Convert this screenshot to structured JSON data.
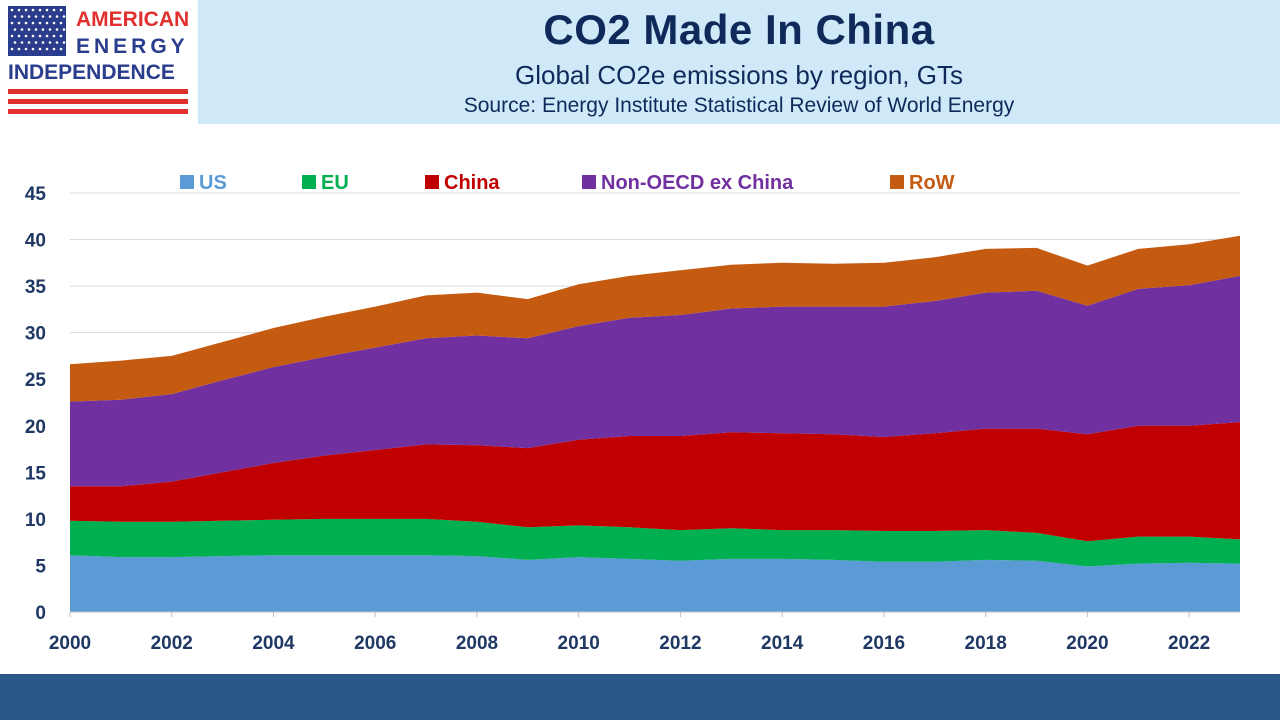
{
  "logo": {
    "line1": "AMERICAN",
    "line2": "ENERGY",
    "line3": "INDEPENDENCE"
  },
  "header": {
    "title": "CO2 Made In China",
    "subtitle": "Global CO2e emissions by region, GTs",
    "source": "Source: Energy Institute Statistical Review of World Energy"
  },
  "chart_data": {
    "type": "area",
    "stacked": true,
    "grid": true,
    "legend_position": "top",
    "ylim": [
      0,
      45
    ],
    "yticks": [
      0,
      5,
      10,
      15,
      20,
      25,
      30,
      35,
      40,
      45
    ],
    "xticks": [
      2000,
      2002,
      2004,
      2006,
      2008,
      2010,
      2012,
      2014,
      2016,
      2018,
      2020,
      2022
    ],
    "x": [
      2000,
      2001,
      2002,
      2003,
      2004,
      2005,
      2006,
      2007,
      2008,
      2009,
      2010,
      2011,
      2012,
      2013,
      2014,
      2015,
      2016,
      2017,
      2018,
      2019,
      2020,
      2021,
      2022,
      2023
    ],
    "series": [
      {
        "name": "US",
        "color": "#5b9bd5",
        "values": [
          6.1,
          5.9,
          5.9,
          6.0,
          6.1,
          6.1,
          6.1,
          6.1,
          6.0,
          5.6,
          5.9,
          5.7,
          5.5,
          5.7,
          5.7,
          5.6,
          5.4,
          5.4,
          5.6,
          5.5,
          4.9,
          5.2,
          5.3,
          5.2
        ]
      },
      {
        "name": "EU",
        "color": "#00b050",
        "values": [
          3.7,
          3.8,
          3.8,
          3.8,
          3.8,
          3.9,
          3.9,
          3.9,
          3.7,
          3.5,
          3.4,
          3.4,
          3.3,
          3.3,
          3.1,
          3.2,
          3.3,
          3.3,
          3.2,
          3.0,
          2.7,
          2.9,
          2.8,
          2.6
        ]
      },
      {
        "name": "China",
        "color": "#c00000",
        "values": [
          3.7,
          3.8,
          4.3,
          5.2,
          6.1,
          6.8,
          7.4,
          8.0,
          8.2,
          8.5,
          9.2,
          9.8,
          10.1,
          10.3,
          10.4,
          10.3,
          10.1,
          10.5,
          10.9,
          11.2,
          11.5,
          11.9,
          11.9,
          12.6
        ]
      },
      {
        "name": "Non-OECD ex China",
        "color": "#7030a0",
        "values": [
          9.1,
          9.3,
          9.4,
          9.9,
          10.3,
          10.6,
          11.0,
          11.4,
          11.8,
          11.8,
          12.2,
          12.7,
          13.0,
          13.3,
          13.6,
          13.7,
          14.0,
          14.2,
          14.6,
          14.8,
          13.8,
          14.7,
          15.1,
          15.7
        ]
      },
      {
        "name": "RoW",
        "color": "#c55a11",
        "values": [
          4.0,
          4.2,
          4.1,
          4.1,
          4.2,
          4.3,
          4.4,
          4.6,
          4.6,
          4.2,
          4.5,
          4.5,
          4.8,
          4.7,
          4.7,
          4.6,
          4.7,
          4.7,
          4.7,
          4.6,
          4.3,
          4.3,
          4.4,
          4.3
        ]
      }
    ]
  },
  "colors": {
    "header_bg": "#cfe9f8",
    "title": "#0f2a5a",
    "axis_text": "#1f3864",
    "footer": "#2b5888",
    "flag_red": "#e0312f",
    "flag_blue": "#2a3c8c"
  }
}
